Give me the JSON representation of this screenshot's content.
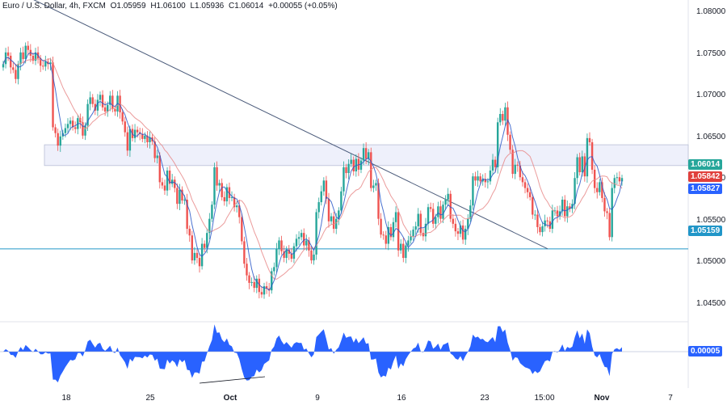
{
  "header": {
    "symbol": "Euro / U.S. Dollar, 4h, FXCM",
    "open": "O1.05959",
    "high": "H1.06100",
    "low": "L1.05936",
    "close": "C1.06014",
    "change": "+0.00055 (+0.05%)"
  },
  "price_labels": {
    "last": "1.06014",
    "ma_slow": "1.05842",
    "ma_fast": "1.05827",
    "support": "1.05159",
    "osc": "0.00005"
  },
  "colors": {
    "up": "#26a69a",
    "down": "#ef5350",
    "support": "#2196c8",
    "trend": "#4a5a7a",
    "zone": "#eef0fb",
    "osc": "#2962ff",
    "ma_fast": "#2a58c8",
    "ma_slow": "#e88a8a"
  },
  "chart_data": {
    "type": "candlestick",
    "ylim": [
      1.0438,
      1.0815
    ],
    "y_ticks": [
      "1.08000",
      "1.07500",
      "1.07000",
      "1.06500",
      "1.06000",
      "1.05500",
      "1.05000",
      "1.04500"
    ],
    "x_ticks": [
      "18",
      "25",
      "Oct",
      "9",
      "16",
      "23",
      "15:00",
      "Nov",
      "7"
    ],
    "zone": [
      1.0616,
      1.0641
    ],
    "support": 1.05159,
    "closes": [
      1.0738,
      1.0752,
      1.0748,
      1.0734,
      1.0731,
      1.072,
      1.0738,
      1.0752,
      1.0744,
      1.076,
      1.0755,
      1.0748,
      1.0742,
      1.0752,
      1.0745,
      1.0736,
      1.0735,
      1.0741,
      1.0738,
      1.074,
      1.0662,
      1.0655,
      1.064,
      1.0651,
      1.0655,
      1.0661,
      1.0666,
      1.067,
      1.0662,
      1.066,
      1.0673,
      1.0668,
      1.0652,
      1.0664,
      1.069,
      1.0698,
      1.069,
      1.0682,
      1.0695,
      1.0701,
      1.0686,
      1.0681,
      1.0689,
      1.07,
      1.0684,
      1.0681,
      1.07,
      1.068,
      1.0669,
      1.0656,
      1.0634,
      1.066,
      1.0649,
      1.0659,
      1.0656,
      1.0654,
      1.0648,
      1.0652,
      1.0644,
      1.065,
      1.0645,
      1.0625,
      1.0628,
      1.0596,
      1.0592,
      1.0586,
      1.061,
      1.0594,
      1.0599,
      1.0589,
      1.057,
      1.0587,
      1.0574,
      1.0575,
      1.054,
      1.0532,
      1.0502,
      1.0511,
      1.0505,
      1.0495,
      1.0522,
      1.0517,
      1.0535,
      1.0552,
      1.0569,
      1.0614,
      1.0592,
      1.0595,
      1.0578,
      1.0573,
      1.059,
      1.0577,
      1.0578,
      1.0566,
      1.0568,
      1.0554,
      1.0525,
      1.0498,
      1.0484,
      1.0475,
      1.0476,
      1.0469,
      1.048,
      1.0464,
      1.0461,
      1.0471,
      1.0468,
      1.0466,
      1.0489,
      1.0494,
      1.0516,
      1.0526,
      1.0513,
      1.0505,
      1.0515,
      1.051,
      1.0504,
      1.0519,
      1.0528,
      1.053,
      1.0535,
      1.052,
      1.0526,
      1.0514,
      1.0502,
      1.0509,
      1.056,
      1.0572,
      1.0585,
      1.0598,
      1.0576,
      1.0549,
      1.0555,
      1.054,
      1.0552,
      1.0562,
      1.0585,
      1.0614,
      1.0607,
      1.0618,
      1.0623,
      1.0609,
      1.0624,
      1.0611,
      1.0622,
      1.0637,
      1.0624,
      1.0632,
      1.0589,
      1.0592,
      1.0595,
      1.0552,
      1.0533,
      1.0532,
      1.0522,
      1.0542,
      1.053,
      1.0548,
      1.056,
      1.0514,
      1.0522,
      1.0505,
      1.052,
      1.0526,
      1.0531,
      1.0539,
      1.0543,
      1.0558,
      1.0535,
      1.0531,
      1.0546,
      1.0566,
      1.0564,
      1.0546,
      1.0554,
      1.0567,
      1.0552,
      1.0569,
      1.0575,
      1.0582,
      1.0552,
      1.0546,
      1.0537,
      1.0534,
      1.0544,
      1.0527,
      1.054,
      1.0552,
      1.0568,
      1.0603,
      1.0598,
      1.0603,
      1.0597,
      1.06,
      1.0596,
      1.0597,
      1.061,
      1.0623,
      1.0614,
      1.0668,
      1.0678,
      1.067,
      1.0686,
      1.0653,
      1.0635,
      1.0606,
      1.0617,
      1.0616,
      1.0602,
      1.0596,
      1.0589,
      1.0584,
      1.0578,
      1.0557,
      1.0557,
      1.0542,
      1.0536,
      1.0543,
      1.055,
      1.0549,
      1.054,
      1.0562,
      1.0562,
      1.0555,
      1.0561,
      1.0575,
      1.0555,
      1.0567,
      1.0564,
      1.057,
      1.0601,
      1.0626,
      1.0608,
      1.0627,
      1.0603,
      1.0649,
      1.0644,
      1.0611,
      1.0589,
      1.0584,
      1.0596,
      1.0577,
      1.0561,
      1.0559,
      1.053,
      1.0589,
      1.0601,
      1.0602,
      1.0597,
      1.0601
    ],
    "ma_fast": {
      "name": "",
      "last": 1.05827
    },
    "ma_slow": {
      "name": "",
      "last": 1.05842
    },
    "oscillator": {
      "last": 5e-05
    }
  }
}
